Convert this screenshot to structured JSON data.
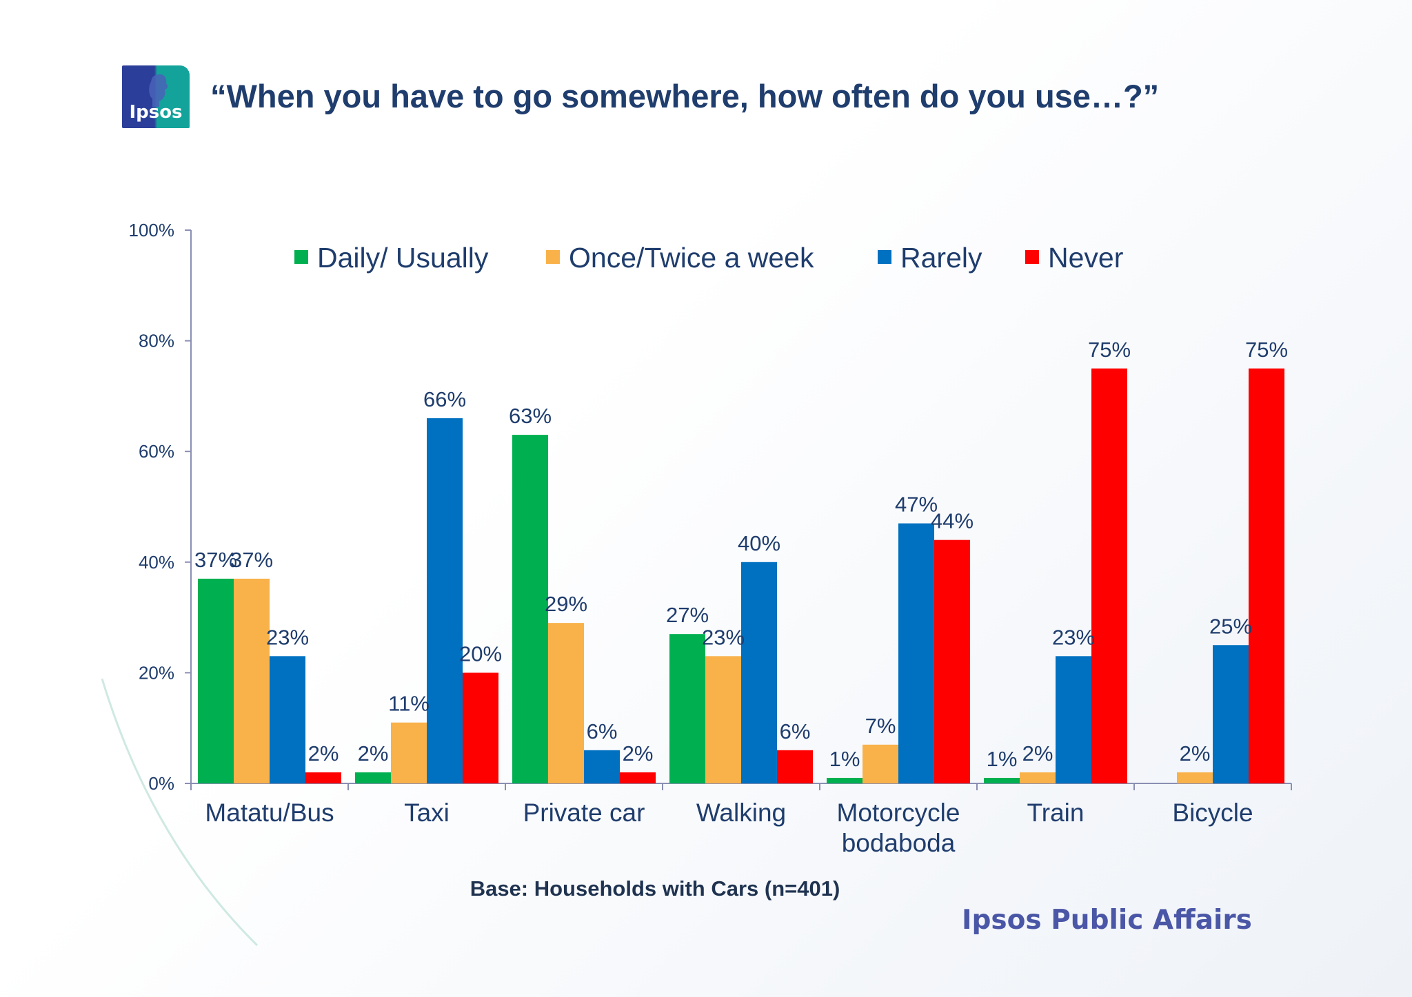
{
  "logo": {
    "text": "Ipsos"
  },
  "title": "“When you have to go somewhere, how often do you use…?”",
  "note": "Base: Households with Cars (n=401)",
  "footer": {
    "brand": "Ipsos Public Affairs"
  },
  "colors": {
    "title": "#1f3d6d",
    "daily": "#00b050",
    "weekly": "#f9b24a",
    "rarely": "#0070c0",
    "never": "#ff0000"
  },
  "chart_data": {
    "type": "bar",
    "categories": [
      "Matatu/Bus",
      "Taxi",
      "Private car",
      "Walking",
      "Motorcycle bodaboda",
      "Train",
      "Bicycle"
    ],
    "category_label_lines": [
      [
        "Matatu/Bus"
      ],
      [
        "Taxi"
      ],
      [
        "Private car"
      ],
      [
        "Walking"
      ],
      [
        "Motorcycle",
        "bodaboda"
      ],
      [
        "Train"
      ],
      [
        "Bicycle"
      ]
    ],
    "series": [
      {
        "name": "Daily/ Usually",
        "color": "#00b050",
        "values": [
          37,
          2,
          63,
          27,
          1,
          1,
          null
        ],
        "labels": [
          "37%",
          "2%",
          "63%",
          "27%",
          "1%",
          "1%",
          ""
        ]
      },
      {
        "name": "Once/Twice a week",
        "color": "#f9b24a",
        "values": [
          37,
          11,
          29,
          23,
          7,
          2,
          2
        ],
        "labels": [
          "37%",
          "11%",
          "29%",
          "23%",
          "7%",
          "2%",
          "2%"
        ]
      },
      {
        "name": "Rarely",
        "color": "#0070c0",
        "values": [
          23,
          66,
          6,
          40,
          47,
          23,
          25
        ],
        "labels": [
          "23%",
          "66%",
          "6%",
          "40%",
          "47%",
          "23%",
          "25%"
        ]
      },
      {
        "name": "Never",
        "color": "#ff0000",
        "values": [
          2,
          20,
          2,
          6,
          44,
          75,
          75
        ],
        "labels": [
          "2%",
          "20%",
          "2%",
          "6%",
          "44%",
          "75%",
          "75%"
        ]
      }
    ],
    "ylim": [
      0,
      100
    ],
    "yticks": [
      "0%",
      "20%",
      "40%",
      "60%",
      "80%",
      "100%"
    ],
    "ytick_values": [
      0,
      20,
      40,
      60,
      80,
      100
    ],
    "legend_position": "top",
    "grid": false
  }
}
